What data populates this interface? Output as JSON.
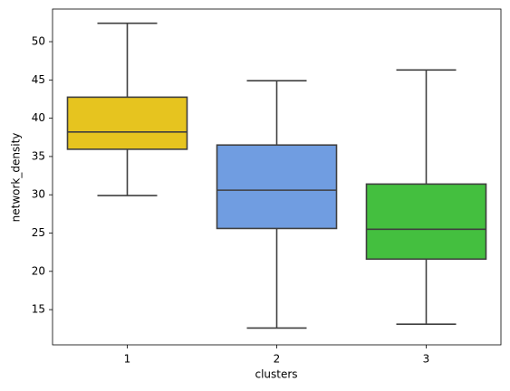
{
  "chart_data": {
    "type": "box",
    "xlabel": "clusters",
    "ylabel": "network_density",
    "categories": [
      "1",
      "2",
      "3"
    ],
    "boxes": [
      {
        "min": 29.9,
        "q1": 35.95,
        "median": 38.2,
        "q3": 42.75,
        "max": 52.4,
        "color": "#e6c41f"
      },
      {
        "min": 12.6,
        "q1": 25.6,
        "median": 30.6,
        "q3": 36.5,
        "max": 44.9,
        "color": "#709de1"
      },
      {
        "min": 13.1,
        "q1": 21.6,
        "median": 25.5,
        "q3": 31.4,
        "max": 46.3,
        "color": "#44bf3f"
      }
    ],
    "ylim": [
      10.4,
      54.26
    ],
    "yticks": [
      15,
      20,
      25,
      30,
      35,
      40,
      45,
      50
    ],
    "line_color": "#3f3f3f"
  }
}
